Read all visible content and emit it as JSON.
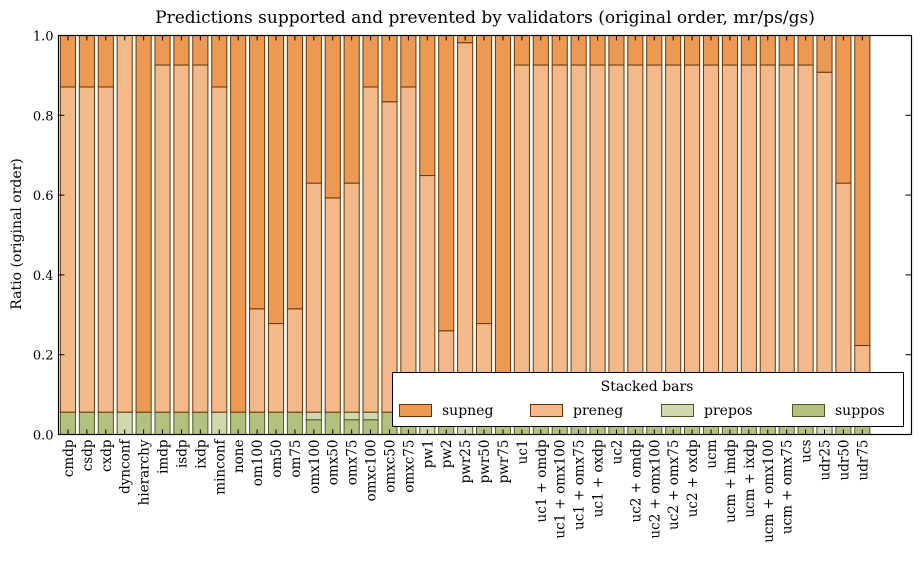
{
  "chart_data": {
    "type": "bar",
    "stacked": true,
    "title": "Predictions supported and prevented by validators (original order, mr/ps/gs)",
    "xlabel": "",
    "ylabel": "Ratio (original order)",
    "ylim": [
      0.0,
      1.0
    ],
    "yticks": [
      "0.0",
      "0.2",
      "0.4",
      "0.6",
      "0.8",
      "1.0"
    ],
    "grid": false,
    "legend": {
      "title": "Stacked bars",
      "placement": "lower-right",
      "entries": [
        "supneg",
        "preneg",
        "prepos",
        "suppos"
      ]
    },
    "categories": [
      "cmdp",
      "csdp",
      "cxdp",
      "dynconf",
      "hierarchy",
      "imdp",
      "isdp",
      "ixdp",
      "minconf",
      "none",
      "om100",
      "om50",
      "om75",
      "omx100",
      "omx50",
      "omx75",
      "omxc100",
      "omxc50",
      "omxc75",
      "pw1",
      "pw2",
      "pwr25",
      "pwr50",
      "pwr75",
      "uc1",
      "uc1 + omdp",
      "uc1 + omx100",
      "uc1 + omx75",
      "uc1 + oxdp",
      "uc2",
      "uc2 + omdp",
      "uc2 + omx100",
      "uc2 + omx75",
      "uc2 + oxdp",
      "ucm",
      "ucm + imdp",
      "ucm + ixdp",
      "ucm + omx100",
      "ucm + omx75",
      "ucs",
      "udr25",
      "udr50",
      "udr75"
    ],
    "series": [
      {
        "name": "suppos",
        "color": "#B3C17F",
        "edge": "#4B5A22",
        "values": [
          0.056,
          0.056,
          0.056,
          0,
          0.056,
          0.056,
          0.056,
          0.056,
          0,
          0.056,
          0.056,
          0.056,
          0.056,
          0.037,
          0.056,
          0.037,
          0.037,
          0.056,
          0.056,
          0,
          0.056,
          0,
          0.056,
          0.056,
          0.056,
          0.056,
          0.056,
          0.056,
          0.056,
          0.056,
          0.056,
          0.056,
          0.056,
          0.056,
          0.056,
          0.056,
          0.056,
          0.056,
          0.056,
          0.056,
          0,
          0.056,
          0.056
        ]
      },
      {
        "name": "prepos",
        "color": "#CFD8AE",
        "edge": "#4B5A22",
        "values": [
          0,
          0,
          0,
          0.056,
          0,
          0,
          0,
          0,
          0.056,
          0,
          0,
          0,
          0,
          0.019,
          0,
          0.019,
          0.019,
          0,
          0,
          0.056,
          0,
          0.056,
          0,
          0,
          0,
          0,
          0,
          0,
          0,
          0,
          0,
          0,
          0,
          0,
          0,
          0,
          0,
          0,
          0,
          0,
          0.056,
          0,
          0
        ]
      },
      {
        "name": "preneg",
        "color": "#F2B98B",
        "edge": "#6B3300",
        "values": [
          0.815,
          0.815,
          0.815,
          0.944,
          0,
          0.87,
          0.87,
          0.87,
          0.815,
          0,
          0.259,
          0.222,
          0.259,
          0.574,
          0.537,
          0.574,
          0.815,
          0.778,
          0.815,
          0.593,
          0.204,
          0.926,
          0.222,
          0,
          0.87,
          0.87,
          0.87,
          0.87,
          0.87,
          0.87,
          0.87,
          0.87,
          0.87,
          0.87,
          0.87,
          0.87,
          0.87,
          0.87,
          0.87,
          0.87,
          0.852,
          0.574,
          0.167
        ]
      },
      {
        "name": "supneg",
        "color": "#EC9A53",
        "edge": "#6B3300",
        "values": [
          0.13,
          0.13,
          0.13,
          0,
          0.944,
          0.074,
          0.074,
          0.074,
          0.13,
          0.944,
          0.685,
          0.722,
          0.685,
          0.37,
          0.407,
          0.37,
          0.13,
          0.167,
          0.13,
          0.352,
          0.741,
          0.019,
          0.722,
          0.944,
          0.074,
          0.074,
          0.074,
          0.074,
          0.074,
          0.074,
          0.074,
          0.074,
          0.074,
          0.074,
          0.074,
          0.074,
          0.074,
          0.074,
          0.074,
          0.074,
          0.093,
          0.37,
          0.778
        ]
      }
    ]
  }
}
